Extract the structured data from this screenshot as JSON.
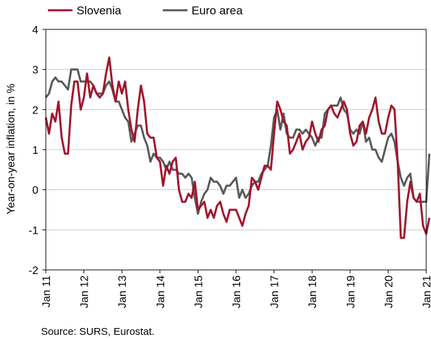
{
  "chart_data": {
    "type": "line",
    "title": "",
    "ylabel": "Year-on-year inflation, in %",
    "xlabel": "",
    "source": "Source: SURS, Eurostat.",
    "x_start": "2011-01",
    "x_ticks": [
      "Jan 11",
      "Jan 12",
      "Jan 13",
      "Jan 14",
      "Jan 15",
      "Jan 16",
      "Jan 17",
      "Jan 18",
      "Jan 19",
      "Jan 20",
      "Jan 21"
    ],
    "y_ticks": [
      "4",
      "3",
      "2",
      "1",
      "0",
      "-1",
      "-2"
    ],
    "ylim": [
      -2,
      4
    ],
    "grid": "horizontal",
    "legend_position": "top-left",
    "series": [
      {
        "name": "Slovenia",
        "color": "#a3152d",
        "values": [
          1.8,
          1.4,
          1.9,
          1.7,
          2.2,
          1.3,
          0.9,
          0.9,
          2.1,
          2.7,
          2.7,
          2.0,
          2.3,
          2.9,
          2.3,
          2.6,
          2.4,
          2.3,
          2.4,
          2.9,
          3.3,
          2.6,
          2.2,
          2.7,
          2.4,
          2.7,
          2.0,
          1.5,
          1.2,
          2.0,
          2.6,
          2.2,
          1.4,
          1.3,
          1.3,
          0.8,
          0.7,
          0.1,
          0.6,
          0.4,
          0.7,
          0.8,
          0.0,
          -0.3,
          -0.3,
          -0.1,
          -0.2,
          0.2,
          -0.5,
          -0.4,
          -0.3,
          -0.7,
          -0.5,
          -0.7,
          -0.4,
          -0.3,
          -0.6,
          -0.8,
          -0.5,
          -0.5,
          -0.5,
          -0.7,
          -0.9,
          -0.6,
          -0.4,
          0.3,
          0.2,
          0.0,
          0.3,
          0.6,
          0.6,
          0.5,
          1.4,
          2.2,
          2.0,
          1.7,
          1.6,
          0.9,
          1.0,
          1.2,
          1.4,
          1.0,
          1.2,
          1.3,
          1.7,
          1.4,
          1.2,
          1.5,
          1.6,
          2.0,
          2.1,
          1.9,
          1.8,
          2.0,
          2.2,
          2.0,
          1.4,
          1.1,
          1.2,
          1.6,
          1.7,
          1.4,
          1.8,
          2.0,
          2.3,
          1.7,
          1.4,
          1.4,
          1.8,
          2.1,
          2.0,
          0.7,
          -1.2,
          -1.2,
          -0.3,
          0.2,
          -0.2,
          -0.3,
          -0.1,
          -0.9,
          -1.1,
          -0.7
        ]
      },
      {
        "name": "Euro area",
        "color": "#595959",
        "values": [
          2.3,
          2.4,
          2.7,
          2.8,
          2.7,
          2.7,
          2.6,
          2.5,
          3.0,
          3.0,
          3.0,
          2.7,
          2.7,
          2.7,
          2.7,
          2.6,
          2.4,
          2.4,
          2.4,
          2.6,
          2.7,
          2.5,
          2.2,
          2.2,
          2.0,
          1.8,
          1.7,
          1.2,
          1.4,
          1.6,
          1.6,
          1.3,
          1.1,
          0.7,
          0.9,
          0.8,
          0.8,
          0.7,
          0.5,
          0.7,
          0.5,
          0.5,
          0.4,
          0.4,
          0.3,
          0.4,
          0.3,
          -0.2,
          -0.6,
          -0.3,
          -0.1,
          0.0,
          0.3,
          0.2,
          0.2,
          0.1,
          -0.1,
          0.1,
          0.1,
          0.2,
          0.3,
          -0.2,
          0.0,
          -0.2,
          -0.1,
          0.1,
          0.2,
          0.2,
          0.4,
          0.5,
          0.6,
          1.1,
          1.8,
          2.0,
          1.5,
          1.9,
          1.4,
          1.3,
          1.3,
          1.5,
          1.5,
          1.4,
          1.5,
          1.4,
          1.3,
          1.1,
          1.3,
          1.3,
          1.9,
          2.0,
          2.1,
          2.1,
          2.1,
          2.3,
          2.0,
          1.9,
          1.5,
          1.4,
          1.5,
          1.4,
          1.7,
          1.2,
          1.3,
          1.0,
          1.0,
          0.8,
          0.7,
          1.0,
          1.3,
          1.4,
          1.2,
          0.7,
          0.3,
          0.1,
          0.3,
          0.4,
          -0.2,
          -0.3,
          -0.3,
          -0.3,
          -0.3,
          0.9
        ]
      }
    ]
  }
}
